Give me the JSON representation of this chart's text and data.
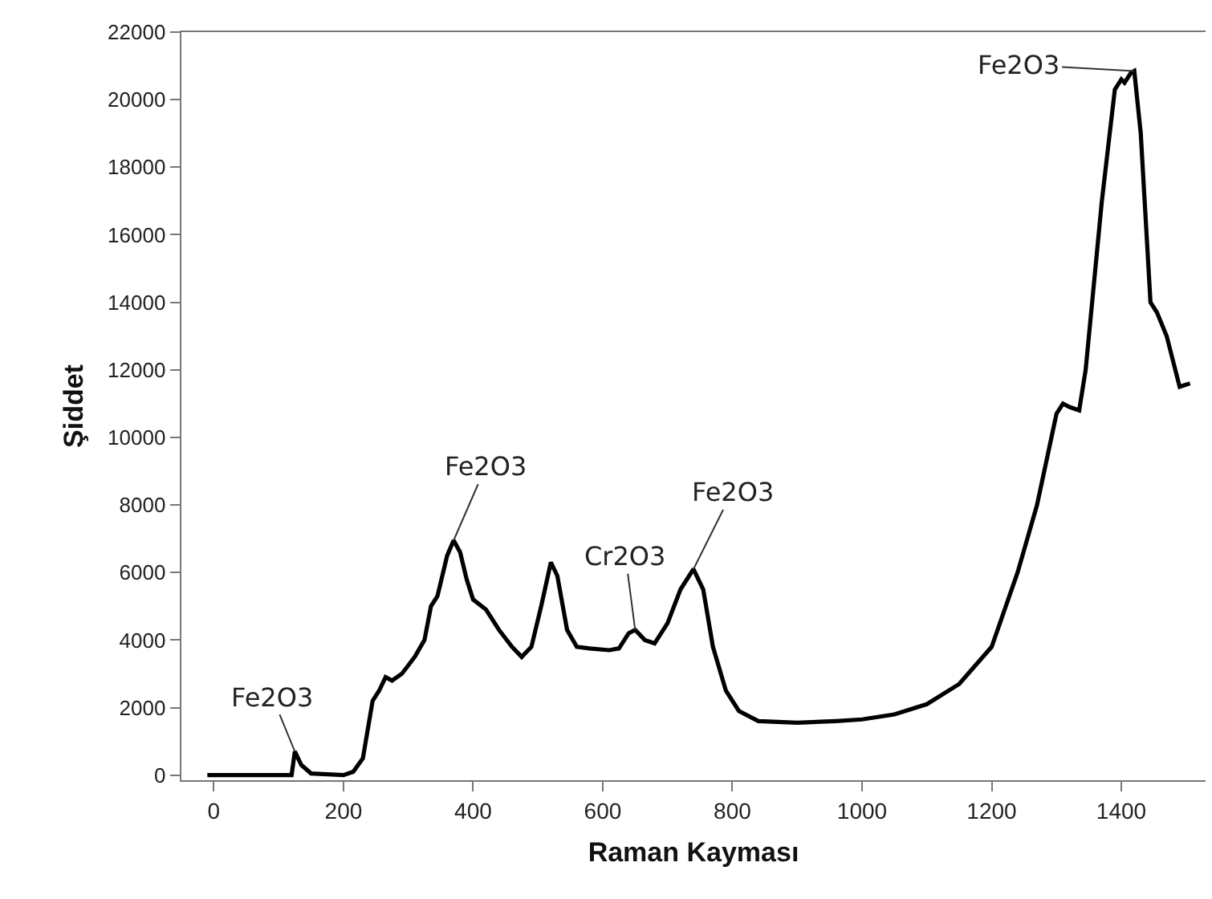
{
  "chart_data": {
    "type": "line",
    "xlabel": "Raman Kayması",
    "ylabel": "Şiddet",
    "xlim": [
      -50,
      1530
    ],
    "ylim": [
      -150,
      22000
    ],
    "xticks": [
      0,
      200,
      400,
      600,
      800,
      1000,
      1200,
      1400
    ],
    "yticks": [
      0,
      2000,
      4000,
      6000,
      8000,
      10000,
      12000,
      14000,
      16000,
      18000,
      20000,
      22000
    ],
    "grid": false,
    "marker": "none",
    "line_style": "solid",
    "series": [
      {
        "color": "#000000",
        "x": [
          -10,
          120,
          125,
          135,
          150,
          200,
          215,
          230,
          245,
          255,
          265,
          275,
          290,
          310,
          325,
          335,
          345,
          360,
          370,
          380,
          390,
          400,
          420,
          440,
          460,
          475,
          490,
          505,
          520,
          530,
          545,
          560,
          580,
          610,
          625,
          640,
          650,
          665,
          680,
          700,
          720,
          740,
          755,
          770,
          790,
          810,
          840,
          900,
          960,
          1000,
          1050,
          1100,
          1150,
          1200,
          1240,
          1270,
          1290,
          1300,
          1310,
          1320,
          1335,
          1345,
          1370,
          1390,
          1400,
          1405,
          1415,
          1420,
          1430,
          1445,
          1455,
          1470,
          1490,
          1506
        ],
        "values": [
          0,
          0,
          700,
          300,
          50,
          0,
          100,
          500,
          2200,
          2500,
          2900,
          2800,
          3000,
          3500,
          4000,
          5000,
          5300,
          6500,
          6950,
          6600,
          5800,
          5200,
          4900,
          4300,
          3800,
          3500,
          3800,
          5000,
          6300,
          5900,
          4300,
          3800,
          3750,
          3700,
          3750,
          4200,
          4300,
          4000,
          3900,
          4500,
          5500,
          6100,
          5500,
          3800,
          2500,
          1900,
          1600,
          1550,
          1600,
          1650,
          1800,
          2100,
          2700,
          3800,
          6000,
          8000,
          9800,
          10700,
          11000,
          10900,
          10800,
          12000,
          17000,
          20300,
          20600,
          20500,
          20800,
          20850,
          19000,
          14000,
          13700,
          13000,
          11500,
          11600
        ]
      }
    ],
    "annotations": [
      {
        "text": "Fe2O3",
        "x": 125,
        "y": 700
      },
      {
        "text": "Fe2O3",
        "x": 370,
        "y": 6950
      },
      {
        "text": "Cr2O3",
        "x": 650,
        "y": 4300
      },
      {
        "text": "Fe2O3",
        "x": 740,
        "y": 6100
      },
      {
        "text": "Fe2O3",
        "x": 1420,
        "y": 20850
      }
    ]
  }
}
